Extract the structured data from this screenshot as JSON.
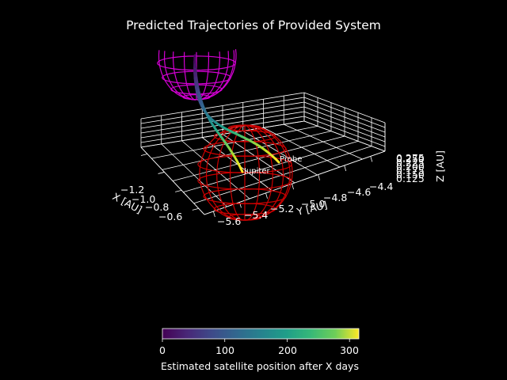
{
  "colors": {
    "background": "#000000",
    "axes": "#ffffff",
    "sphere_top": "#d400d4",
    "sphere_bottom": "#cc0000",
    "colormap": "viridis"
  },
  "chart_data": {
    "type": "line3d",
    "title": "Predicted Trajectories of Provided System",
    "xlabel": "X [AU]",
    "ylabel": "Y [AU]",
    "zlabel": "Z [AU]",
    "x_ticks": [
      "−1.2",
      "−1.0",
      "−0.8",
      "−0.6"
    ],
    "y_ticks": [
      "−5.6",
      "−5.4",
      "−5.2",
      "−5.0",
      "−4.8",
      "−4.6",
      "−4.4"
    ],
    "z_ticks": [
      "0.125",
      "0.150",
      "0.175",
      "0.200",
      "0.225",
      "0.250",
      "0.275"
    ],
    "annotations": [
      "Jupiter",
      "Probe"
    ],
    "spheres": [
      "magenta wireframe sphere (top)",
      "red wireframe sphere (Jupiter)"
    ],
    "series": [
      {
        "name": "Probe",
        "days": [
          0,
          50,
          100,
          150,
          200,
          250,
          300
        ]
      },
      {
        "name": "Jupiter",
        "days": [
          0,
          50,
          100,
          150,
          200,
          250,
          300
        ]
      }
    ],
    "colorbar": {
      "label": "Estimated satellite position after X days",
      "ticks": [
        "0",
        "100",
        "200",
        "300"
      ],
      "range": [
        0,
        315
      ]
    }
  }
}
